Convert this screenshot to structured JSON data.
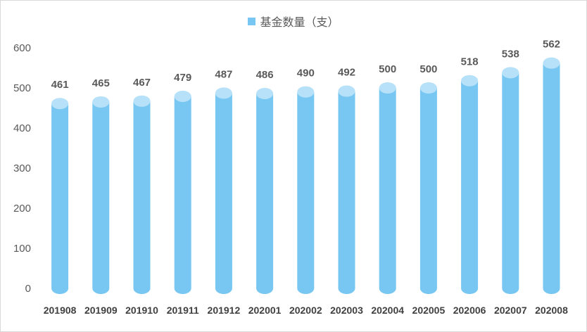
{
  "chart_data": {
    "type": "bar",
    "title": "",
    "legend": {
      "position": "top",
      "entries": [
        "基金数量（支）"
      ]
    },
    "categories": [
      "201908",
      "201909",
      "201910",
      "201911",
      "201912",
      "202001",
      "202002",
      "202003",
      "202004",
      "202005",
      "202006",
      "202007",
      "202008"
    ],
    "series": [
      {
        "name": "基金数量（支）",
        "values": [
          461,
          465,
          467,
          479,
          487,
          486,
          490,
          492,
          500,
          500,
          518,
          538,
          562
        ]
      }
    ],
    "ylim": [
      0,
      600
    ],
    "yticks": [
      0,
      100,
      200,
      300,
      400,
      500,
      600
    ],
    "xlabel": "",
    "ylabel": "",
    "grid": false,
    "colors": {
      "bar": "#77c7f2",
      "bar_top": "#b6e1f9",
      "axis_text": "#595959"
    }
  }
}
